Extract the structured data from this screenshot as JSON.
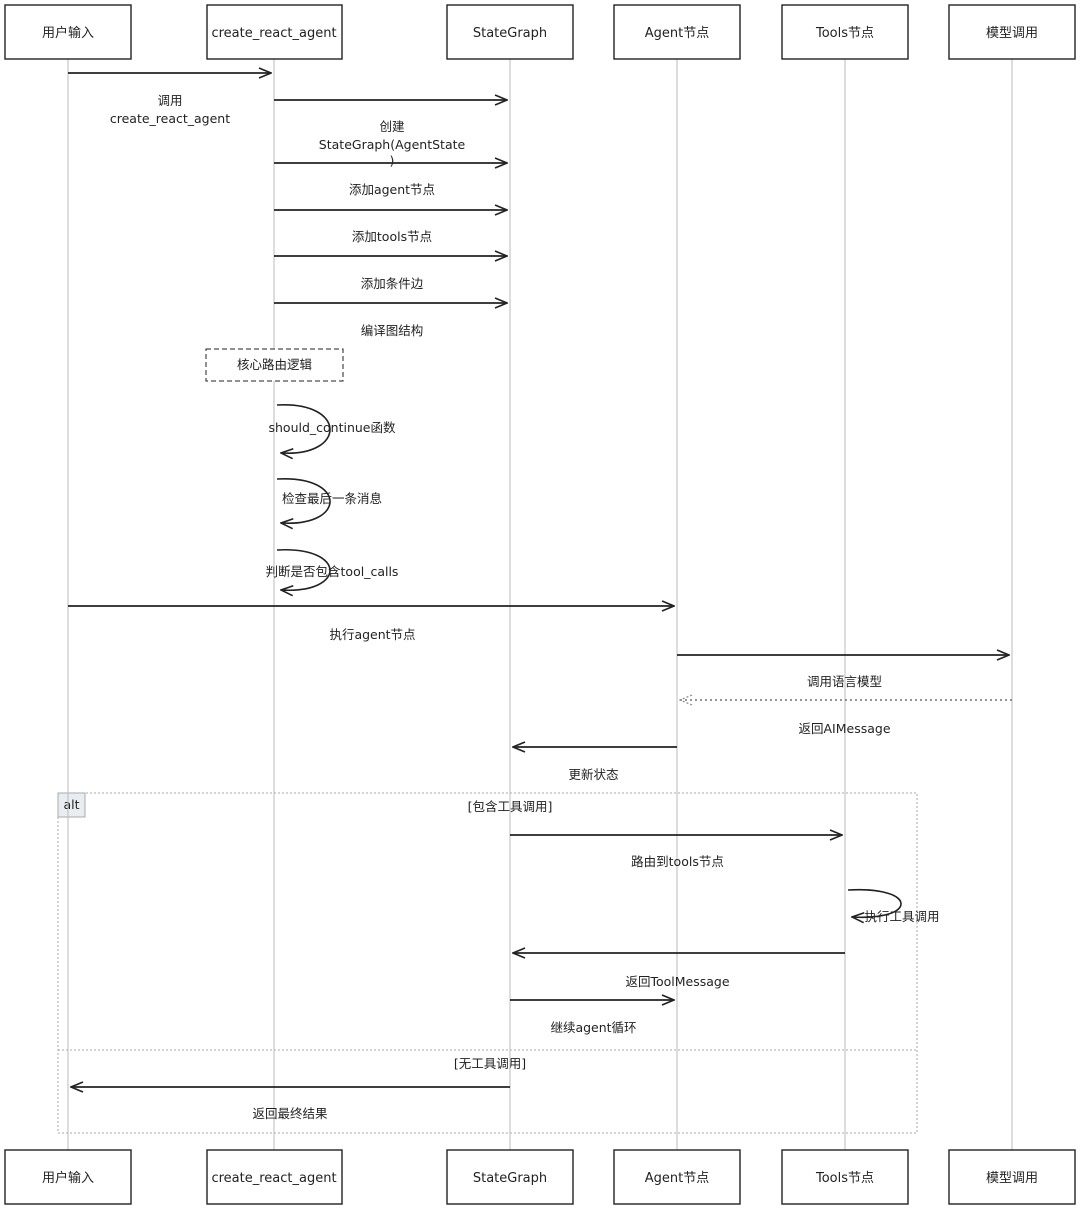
{
  "participants": [
    "用户输入",
    "create_react_agent",
    "StateGraph",
    "Agent节点",
    "Tools节点",
    "模型调用"
  ],
  "messages": [
    {
      "from": 0,
      "to": 1,
      "label": [
        "调用",
        "create_react_agent"
      ],
      "style": "solid"
    },
    {
      "from": 1,
      "to": 2,
      "label": [
        "创建",
        "StateGraph(AgentState",
        ")"
      ],
      "style": "solid"
    },
    {
      "from": 1,
      "to": 2,
      "label": [
        "添加agent节点"
      ],
      "style": "solid"
    },
    {
      "from": 1,
      "to": 2,
      "label": [
        "添加tools节点"
      ],
      "style": "solid"
    },
    {
      "from": 1,
      "to": 2,
      "label": [
        "添加条件边"
      ],
      "style": "solid"
    },
    {
      "from": 1,
      "to": 2,
      "label": [
        "编译图结构"
      ],
      "style": "solid"
    },
    {
      "from": 0,
      "to": 3,
      "label": [
        "执行agent节点"
      ],
      "style": "solid"
    },
    {
      "from": 3,
      "to": 5,
      "label": [
        "调用语言模型"
      ],
      "style": "solid"
    },
    {
      "from": 5,
      "to": 3,
      "label": [
        "返回AIMessage"
      ],
      "style": "dotted"
    },
    {
      "from": 3,
      "to": 2,
      "label": [
        "更新状态"
      ],
      "style": "solid"
    },
    {
      "from": 2,
      "to": 4,
      "label": [
        "路由到tools节点"
      ],
      "style": "solid"
    },
    {
      "from": 4,
      "to": 2,
      "label": [
        "返回ToolMessage"
      ],
      "style": "solid"
    },
    {
      "from": 2,
      "to": 3,
      "label": [
        "继续agent循环"
      ],
      "style": "solid"
    },
    {
      "from": 2,
      "to": 0,
      "label": [
        "返回最终结果"
      ],
      "style": "solid"
    }
  ],
  "note": {
    "text": "核心路由逻辑",
    "over": 1
  },
  "self_calls": [
    {
      "on": 1,
      "label": "should_continue函数"
    },
    {
      "on": 1,
      "label": "检查最后一条消息"
    },
    {
      "on": 1,
      "label": "判断是否包含tool_calls"
    },
    {
      "on": 4,
      "label": "执行工具调用"
    }
  ],
  "alt": {
    "tag": "alt",
    "branches": [
      "[包含工具调用]",
      "[无工具调用]"
    ]
  }
}
